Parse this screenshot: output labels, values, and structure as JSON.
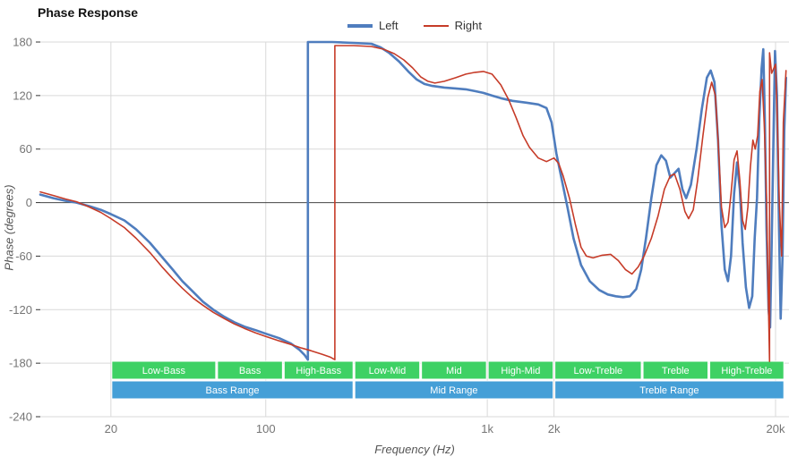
{
  "chart_data": {
    "type": "line",
    "title": "Phase Response",
    "xlabel": "Frequency (Hz)",
    "ylabel": "Phase (degrees)",
    "x_scale": "log",
    "x_range": [
      9.6,
      23000
    ],
    "y_range": [
      -240,
      180
    ],
    "x_ticks": [
      {
        "value": 20,
        "label": "20"
      },
      {
        "value": 100,
        "label": "100"
      },
      {
        "value": 1000,
        "label": "1k"
      },
      {
        "value": 2000,
        "label": "2k"
      },
      {
        "value": 20000,
        "label": "20k"
      }
    ],
    "y_ticks": [
      180,
      120,
      60,
      0,
      -60,
      -120,
      -180,
      -240
    ],
    "legend_position": "top-center",
    "grid": true,
    "colors": {
      "grid": "#d9d9d9",
      "zero_line": "#444444",
      "tick_text": "#757575",
      "axis_title_text": "#555555",
      "title_text": "#111111",
      "background": "#ffffff"
    },
    "series": [
      {
        "name": "Left",
        "color": "#4f7dbe",
        "width": 2.6,
        "points": [
          [
            9.6,
            9
          ],
          [
            11,
            5
          ],
          [
            12.5,
            2
          ],
          [
            14,
            0
          ],
          [
            16,
            -4
          ],
          [
            18,
            -8
          ],
          [
            20,
            -13
          ],
          [
            23,
            -20
          ],
          [
            26,
            -30
          ],
          [
            30,
            -45
          ],
          [
            34,
            -61
          ],
          [
            38,
            -75
          ],
          [
            42,
            -88
          ],
          [
            47,
            -100
          ],
          [
            52,
            -111
          ],
          [
            58,
            -120
          ],
          [
            65,
            -128
          ],
          [
            72,
            -134
          ],
          [
            80,
            -139
          ],
          [
            90,
            -143
          ],
          [
            100,
            -147
          ],
          [
            115,
            -152
          ],
          [
            130,
            -158
          ],
          [
            142,
            -165
          ],
          [
            150,
            -171
          ],
          [
            155,
            -176
          ],
          [
            155,
            180
          ],
          [
            165,
            180
          ],
          [
            200,
            180
          ],
          [
            250,
            179
          ],
          [
            300,
            178
          ],
          [
            330,
            174
          ],
          [
            360,
            168
          ],
          [
            400,
            158
          ],
          [
            440,
            147
          ],
          [
            480,
            138
          ],
          [
            520,
            133
          ],
          [
            560,
            131
          ],
          [
            640,
            129
          ],
          [
            720,
            128
          ],
          [
            800,
            127
          ],
          [
            880,
            125
          ],
          [
            960,
            123
          ],
          [
            1050,
            120
          ],
          [
            1150,
            117
          ],
          [
            1300,
            114
          ],
          [
            1500,
            112
          ],
          [
            1700,
            110
          ],
          [
            1850,
            106
          ],
          [
            1950,
            90
          ],
          [
            2050,
            55
          ],
          [
            2150,
            30
          ],
          [
            2300,
            -5
          ],
          [
            2450,
            -40
          ],
          [
            2650,
            -70
          ],
          [
            2900,
            -88
          ],
          [
            3200,
            -98
          ],
          [
            3500,
            -103
          ],
          [
            3800,
            -105
          ],
          [
            4100,
            -106
          ],
          [
            4400,
            -105
          ],
          [
            4700,
            -97
          ],
          [
            4950,
            -75
          ],
          [
            5200,
            -40
          ],
          [
            5500,
            5
          ],
          [
            5800,
            42
          ],
          [
            6100,
            53
          ],
          [
            6400,
            47
          ],
          [
            6700,
            28
          ],
          [
            7000,
            33
          ],
          [
            7300,
            38
          ],
          [
            7600,
            15
          ],
          [
            7900,
            5
          ],
          [
            8300,
            20
          ],
          [
            8800,
            60
          ],
          [
            9300,
            105
          ],
          [
            9800,
            140
          ],
          [
            10200,
            148
          ],
          [
            10600,
            135
          ],
          [
            11000,
            70
          ],
          [
            11400,
            -25
          ],
          [
            11800,
            -75
          ],
          [
            12200,
            -88
          ],
          [
            12600,
            -60
          ],
          [
            13000,
            10
          ],
          [
            13400,
            45
          ],
          [
            13800,
            15
          ],
          [
            14200,
            -45
          ],
          [
            14700,
            -95
          ],
          [
            15200,
            -118
          ],
          [
            15700,
            -105
          ],
          [
            16100,
            -40
          ],
          [
            16500,
            5
          ],
          [
            16900,
            95
          ],
          [
            17300,
            150
          ],
          [
            17600,
            172
          ],
          [
            17900,
            90
          ],
          [
            18200,
            -30
          ],
          [
            18600,
            -120
          ],
          [
            18900,
            -140
          ],
          [
            19200,
            -50
          ],
          [
            19600,
            80
          ],
          [
            19900,
            170
          ],
          [
            20300,
            120
          ],
          [
            20700,
            -20
          ],
          [
            21100,
            -130
          ],
          [
            21500,
            -60
          ],
          [
            21900,
            80
          ],
          [
            22300,
            140
          ]
        ]
      },
      {
        "name": "Right",
        "color": "#c63b28",
        "width": 1.6,
        "points": [
          [
            9.6,
            12
          ],
          [
            11,
            8
          ],
          [
            12.5,
            4
          ],
          [
            14,
            1
          ],
          [
            16,
            -5
          ],
          [
            18,
            -11
          ],
          [
            20,
            -18
          ],
          [
            23,
            -28
          ],
          [
            26,
            -40
          ],
          [
            30,
            -56
          ],
          [
            34,
            -72
          ],
          [
            38,
            -85
          ],
          [
            42,
            -96
          ],
          [
            47,
            -107
          ],
          [
            52,
            -115
          ],
          [
            58,
            -123
          ],
          [
            65,
            -130
          ],
          [
            72,
            -136
          ],
          [
            80,
            -141
          ],
          [
            90,
            -146
          ],
          [
            100,
            -150
          ],
          [
            115,
            -155
          ],
          [
            130,
            -159
          ],
          [
            145,
            -163
          ],
          [
            160,
            -166
          ],
          [
            180,
            -170
          ],
          [
            195,
            -173
          ],
          [
            205,
            -176
          ],
          [
            205,
            176
          ],
          [
            215,
            176
          ],
          [
            250,
            176
          ],
          [
            300,
            175
          ],
          [
            340,
            172
          ],
          [
            380,
            167
          ],
          [
            420,
            160
          ],
          [
            460,
            151
          ],
          [
            500,
            141
          ],
          [
            540,
            136
          ],
          [
            580,
            134
          ],
          [
            640,
            136
          ],
          [
            720,
            140
          ],
          [
            800,
            144
          ],
          [
            880,
            146
          ],
          [
            960,
            147
          ],
          [
            1050,
            144
          ],
          [
            1150,
            132
          ],
          [
            1250,
            115
          ],
          [
            1350,
            95
          ],
          [
            1450,
            75
          ],
          [
            1550,
            62
          ],
          [
            1700,
            50
          ],
          [
            1850,
            46
          ],
          [
            2000,
            50
          ],
          [
            2100,
            44
          ],
          [
            2200,
            30
          ],
          [
            2350,
            5
          ],
          [
            2500,
            -25
          ],
          [
            2650,
            -50
          ],
          [
            2800,
            -60
          ],
          [
            3000,
            -62
          ],
          [
            3300,
            -59
          ],
          [
            3600,
            -58
          ],
          [
            3900,
            -65
          ],
          [
            4200,
            -75
          ],
          [
            4500,
            -80
          ],
          [
            4800,
            -72
          ],
          [
            5100,
            -60
          ],
          [
            5500,
            -40
          ],
          [
            5900,
            -15
          ],
          [
            6300,
            15
          ],
          [
            6700,
            30
          ],
          [
            7000,
            32
          ],
          [
            7400,
            15
          ],
          [
            7800,
            -10
          ],
          [
            8100,
            -18
          ],
          [
            8500,
            -8
          ],
          [
            8900,
            25
          ],
          [
            9400,
            75
          ],
          [
            9900,
            118
          ],
          [
            10300,
            135
          ],
          [
            10700,
            120
          ],
          [
            11000,
            70
          ],
          [
            11400,
            -5
          ],
          [
            11800,
            -28
          ],
          [
            12200,
            -22
          ],
          [
            12600,
            10
          ],
          [
            13000,
            48
          ],
          [
            13400,
            58
          ],
          [
            13800,
            25
          ],
          [
            14200,
            -20
          ],
          [
            14600,
            -30
          ],
          [
            15000,
            -5
          ],
          [
            15400,
            40
          ],
          [
            15800,
            70
          ],
          [
            16200,
            60
          ],
          [
            16600,
            75
          ],
          [
            17000,
            125
          ],
          [
            17400,
            138
          ],
          [
            17800,
            85
          ],
          [
            18200,
            5
          ],
          [
            18500,
            -90
          ],
          [
            18800,
            -178
          ],
          [
            18800,
            168
          ],
          [
            19200,
            145
          ],
          [
            19600,
            150
          ],
          [
            20000,
            155
          ],
          [
            20400,
            90
          ],
          [
            20800,
            0
          ],
          [
            21300,
            -60
          ],
          [
            21700,
            90
          ],
          [
            22300,
            148
          ]
        ]
      }
    ],
    "bands": {
      "rows": [
        {
          "name": "sub-bands",
          "color": "#3ed164",
          "items": [
            {
              "label": "Low-Bass",
              "from": 20,
              "to": 60
            },
            {
              "label": "Bass",
              "from": 60,
              "to": 120
            },
            {
              "label": "High-Bass",
              "from": 120,
              "to": 250
            },
            {
              "label": "Low-Mid",
              "from": 250,
              "to": 500
            },
            {
              "label": "Mid",
              "from": 500,
              "to": 1000
            },
            {
              "label": "High-Mid",
              "from": 1000,
              "to": 2000
            },
            {
              "label": "Low-Treble",
              "from": 2000,
              "to": 5000
            },
            {
              "label": "Treble",
              "from": 5000,
              "to": 10000
            },
            {
              "label": "High-Treble",
              "from": 10000,
              "to": 22000
            }
          ]
        },
        {
          "name": "ranges",
          "color": "#459fd7",
          "items": [
            {
              "label": "Bass Range",
              "from": 20,
              "to": 250
            },
            {
              "label": "Mid Range",
              "from": 250,
              "to": 2000
            },
            {
              "label": "Treble Range",
              "from": 2000,
              "to": 22000
            }
          ]
        }
      ]
    }
  }
}
